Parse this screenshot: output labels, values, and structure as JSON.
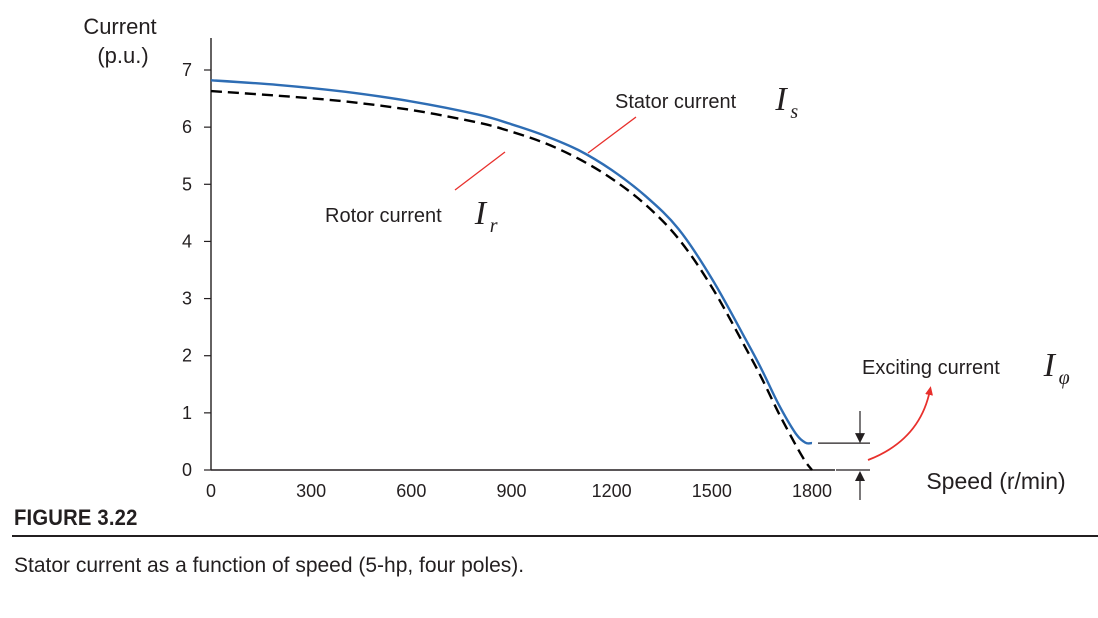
{
  "chart_data": {
    "type": "line",
    "ylabel": [
      "Current",
      "(p.u.)"
    ],
    "xlabel": "Speed (r/min)",
    "xlim": [
      0,
      1800
    ],
    "ylim": [
      0,
      7
    ],
    "x_ticks": [
      "0",
      "300",
      "600",
      "900",
      "1200",
      "1500",
      "1800"
    ],
    "y_ticks": [
      "0",
      "1",
      "2",
      "3",
      "4",
      "5",
      "6",
      "7"
    ],
    "x": [
      0,
      200,
      400,
      600,
      800,
      900,
      1000,
      1100,
      1200,
      1300,
      1400,
      1500,
      1600,
      1650,
      1700,
      1750,
      1780,
      1800
    ],
    "series": [
      {
        "name": "Stator current",
        "symbol": "I",
        "subscript": "s",
        "color": "#2e6db4",
        "style": "solid",
        "values": [
          6.82,
          6.74,
          6.62,
          6.45,
          6.22,
          6.05,
          5.85,
          5.6,
          5.25,
          4.8,
          4.22,
          3.35,
          2.3,
          1.75,
          1.15,
          0.65,
          0.48,
          0.47
        ]
      },
      {
        "name": "Rotor current",
        "symbol": "I",
        "subscript": "r",
        "color": "#000000",
        "style": "dashed",
        "values": [
          6.63,
          6.55,
          6.45,
          6.3,
          6.08,
          5.92,
          5.72,
          5.45,
          5.1,
          4.65,
          4.05,
          3.2,
          2.15,
          1.6,
          1.0,
          0.45,
          0.15,
          0.0
        ]
      }
    ],
    "annotations": {
      "stator": {
        "text": "Stator current",
        "symbol": "I",
        "subscript": "s"
      },
      "rotor": {
        "text": "Rotor current",
        "symbol": "I",
        "subscript": "r"
      },
      "exciting": {
        "text": "Exciting current",
        "symbol": "I",
        "subscript": "φ"
      }
    },
    "grid": false,
    "legend": "none"
  },
  "figure": {
    "label": "FIGURE 3.22",
    "caption": "Stator current as a function of speed (5-hp, four poles)."
  },
  "colors": {
    "annotation_line": "#e8302c",
    "axis": "#231f20"
  }
}
